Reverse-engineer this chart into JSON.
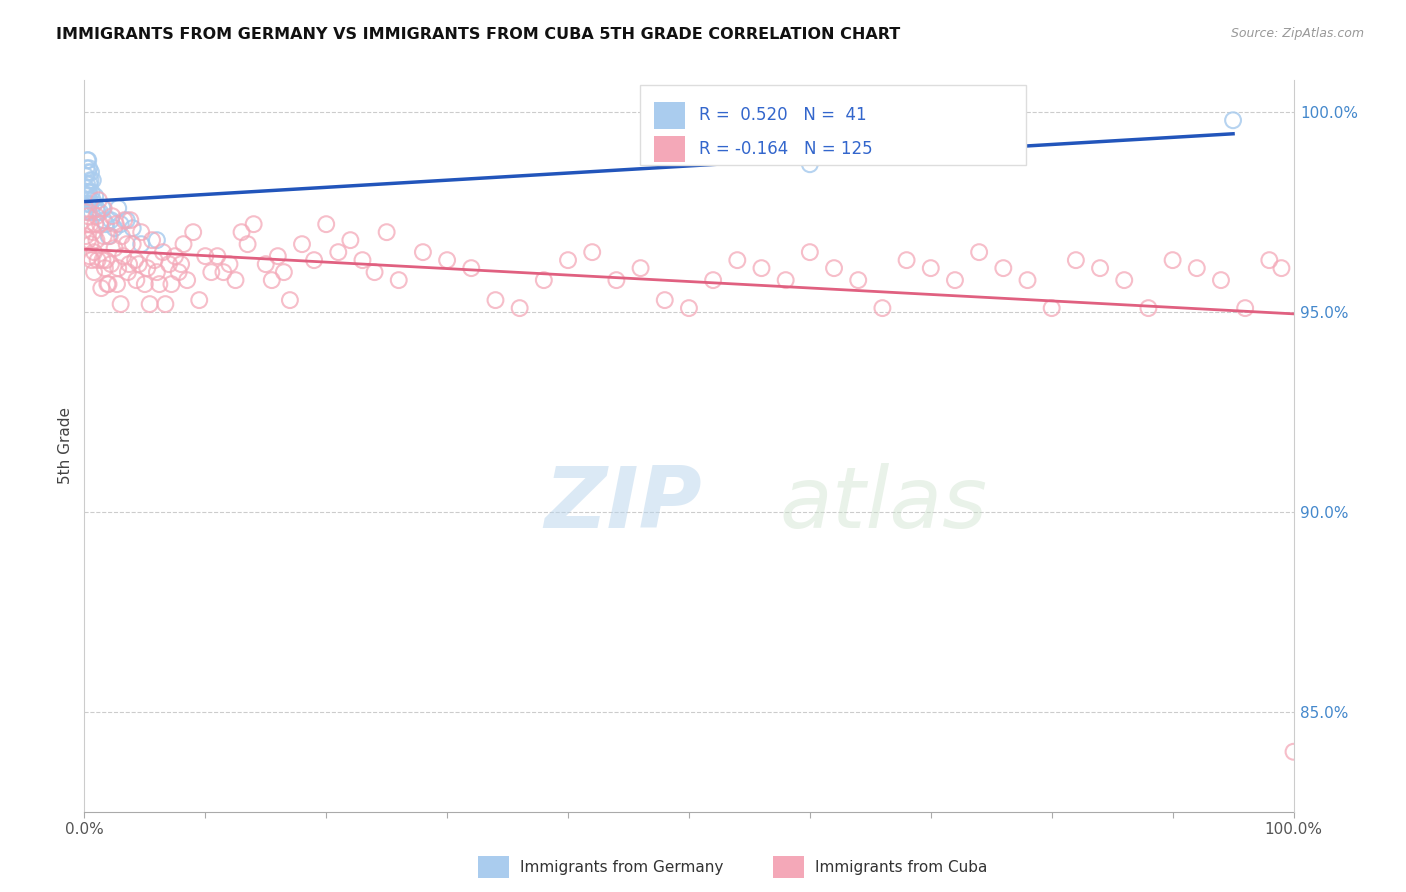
{
  "title": "IMMIGRANTS FROM GERMANY VS IMMIGRANTS FROM CUBA 5TH GRADE CORRELATION CHART",
  "source": "Source: ZipAtlas.com",
  "ylabel": "5th Grade",
  "xlim": [
    0.0,
    1.0
  ],
  "ylim": [
    0.825,
    1.008
  ],
  "right_yticks": [
    0.85,
    0.9,
    0.95,
    1.0
  ],
  "right_yticklabels": [
    "85.0%",
    "90.0%",
    "95.0%",
    "100.0%"
  ],
  "germany_R": 0.52,
  "germany_N": 41,
  "cuba_R": -0.164,
  "cuba_N": 125,
  "germany_color": "#aaccee",
  "cuba_color": "#f4a8b8",
  "germany_line_color": "#2255bb",
  "cuba_line_color": "#e06080",
  "watermark_zip": "ZIP",
  "watermark_atlas": "atlas",
  "legend_germany": "Immigrants from Germany",
  "legend_cuba": "Immigrants from Cuba",
  "germany_x": [
    0.0012,
    0.0015,
    0.0018,
    0.002,
    0.0022,
    0.0025,
    0.003,
    0.003,
    0.003,
    0.0032,
    0.0035,
    0.004,
    0.004,
    0.0042,
    0.0045,
    0.005,
    0.005,
    0.0055,
    0.006,
    0.006,
    0.007,
    0.007,
    0.008,
    0.009,
    0.01,
    0.011,
    0.013,
    0.015,
    0.016,
    0.018,
    0.02,
    0.022,
    0.025,
    0.028,
    0.03,
    0.035,
    0.04,
    0.047,
    0.06,
    0.6,
    0.95
  ],
  "germany_y": [
    0.984,
    0.981,
    0.986,
    0.979,
    0.982,
    0.988,
    0.977,
    0.98,
    0.985,
    0.988,
    0.975,
    0.98,
    0.986,
    0.978,
    0.982,
    0.977,
    0.983,
    0.985,
    0.975,
    0.98,
    0.978,
    0.983,
    0.977,
    0.979,
    0.976,
    0.975,
    0.975,
    0.976,
    0.973,
    0.972,
    0.969,
    0.973,
    0.971,
    0.976,
    0.972,
    0.973,
    0.971,
    0.967,
    0.968,
    0.987,
    0.998
  ],
  "cuba_x": [
    0.001,
    0.001,
    0.002,
    0.003,
    0.003,
    0.004,
    0.005,
    0.005,
    0.006,
    0.007,
    0.008,
    0.008,
    0.009,
    0.01,
    0.01,
    0.011,
    0.012,
    0.013,
    0.014,
    0.015,
    0.016,
    0.016,
    0.017,
    0.018,
    0.019,
    0.02,
    0.021,
    0.022,
    0.023,
    0.025,
    0.026,
    0.027,
    0.028,
    0.03,
    0.031,
    0.032,
    0.033,
    0.035,
    0.036,
    0.037,
    0.038,
    0.04,
    0.042,
    0.043,
    0.045,
    0.047,
    0.05,
    0.052,
    0.054,
    0.056,
    0.058,
    0.06,
    0.062,
    0.065,
    0.067,
    0.07,
    0.072,
    0.075,
    0.078,
    0.08,
    0.082,
    0.085,
    0.09,
    0.095,
    0.1,
    0.105,
    0.11,
    0.115,
    0.12,
    0.125,
    0.13,
    0.135,
    0.14,
    0.15,
    0.155,
    0.16,
    0.165,
    0.17,
    0.18,
    0.19,
    0.2,
    0.21,
    0.22,
    0.23,
    0.24,
    0.25,
    0.26,
    0.28,
    0.3,
    0.32,
    0.34,
    0.36,
    0.38,
    0.4,
    0.42,
    0.44,
    0.46,
    0.48,
    0.5,
    0.52,
    0.54,
    0.56,
    0.58,
    0.6,
    0.62,
    0.64,
    0.66,
    0.68,
    0.7,
    0.72,
    0.74,
    0.76,
    0.78,
    0.8,
    0.82,
    0.84,
    0.86,
    0.88,
    0.9,
    0.92,
    0.94,
    0.96,
    0.98,
    0.99,
    1.0
  ],
  "cuba_y": [
    0.975,
    0.969,
    0.972,
    0.974,
    0.968,
    0.964,
    0.972,
    0.967,
    0.963,
    0.97,
    0.965,
    0.96,
    0.972,
    0.974,
    0.968,
    0.963,
    0.978,
    0.972,
    0.956,
    0.963,
    0.969,
    0.976,
    0.961,
    0.963,
    0.957,
    0.957,
    0.969,
    0.962,
    0.974,
    0.966,
    0.972,
    0.957,
    0.961,
    0.952,
    0.969,
    0.964,
    0.973,
    0.967,
    0.96,
    0.962,
    0.973,
    0.967,
    0.963,
    0.958,
    0.962,
    0.97,
    0.957,
    0.961,
    0.952,
    0.968,
    0.963,
    0.96,
    0.957,
    0.965,
    0.952,
    0.962,
    0.957,
    0.964,
    0.96,
    0.962,
    0.967,
    0.958,
    0.97,
    0.953,
    0.964,
    0.96,
    0.964,
    0.96,
    0.962,
    0.958,
    0.97,
    0.967,
    0.972,
    0.962,
    0.958,
    0.964,
    0.96,
    0.953,
    0.967,
    0.963,
    0.972,
    0.965,
    0.968,
    0.963,
    0.96,
    0.97,
    0.958,
    0.965,
    0.963,
    0.961,
    0.953,
    0.951,
    0.958,
    0.963,
    0.965,
    0.958,
    0.961,
    0.953,
    0.951,
    0.958,
    0.963,
    0.961,
    0.958,
    0.965,
    0.961,
    0.958,
    0.951,
    0.963,
    0.961,
    0.958,
    0.965,
    0.961,
    0.958,
    0.951,
    0.963,
    0.961,
    0.958,
    0.951,
    0.963,
    0.961,
    0.958,
    0.951,
    0.963,
    0.961,
    0.84
  ]
}
